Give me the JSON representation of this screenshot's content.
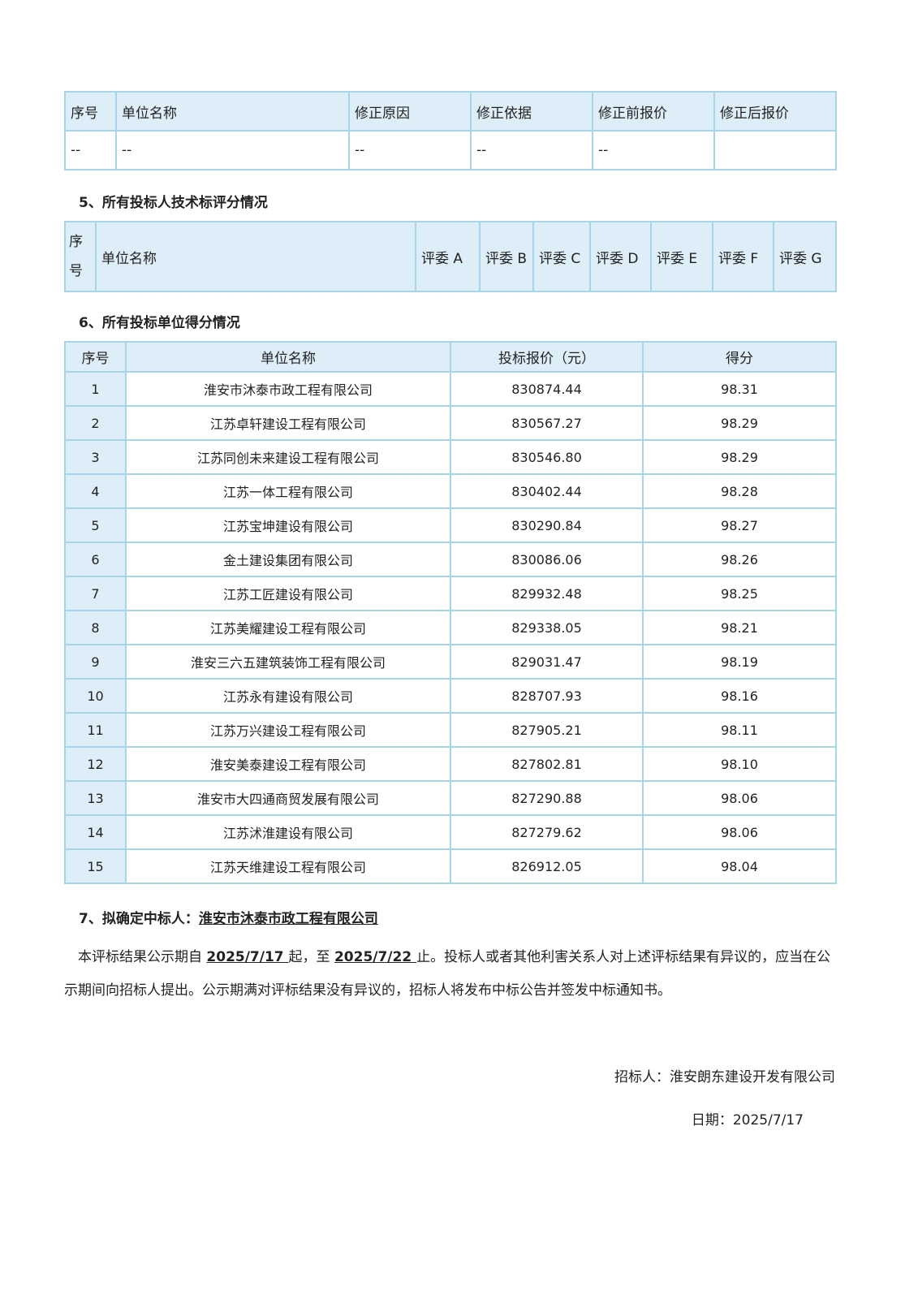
{
  "correction_table": {
    "headers": [
      "序号",
      "单位名称",
      "修正原因",
      "修正依据",
      "修正前报价",
      "修正后报价"
    ],
    "row": [
      "--",
      "--",
      "--",
      "--",
      "--",
      ""
    ]
  },
  "section5": {
    "heading": "5、所有投标人技术标评分情况",
    "headers": [
      "序号",
      "单位名称",
      "评委 A",
      "评委 B",
      "评委 C",
      "评委 D",
      "评委 E",
      "评委 F",
      "评委 G"
    ]
  },
  "section6": {
    "heading": "6、所有投标单位得分情况",
    "headers": [
      "序号",
      "单位名称",
      "投标报价（元）",
      "得分"
    ],
    "rows": [
      [
        "1",
        "淮安市沐泰市政工程有限公司",
        "830874.44",
        "98.31"
      ],
      [
        "2",
        "江苏卓轩建设工程有限公司",
        "830567.27",
        "98.29"
      ],
      [
        "3",
        "江苏同创未来建设工程有限公司",
        "830546.80",
        "98.29"
      ],
      [
        "4",
        "江苏一体工程有限公司",
        "830402.44",
        "98.28"
      ],
      [
        "5",
        "江苏宝坤建设有限公司",
        "830290.84",
        "98.27"
      ],
      [
        "6",
        "金土建设集团有限公司",
        "830086.06",
        "98.26"
      ],
      [
        "7",
        "江苏工匠建设有限公司",
        "829932.48",
        "98.25"
      ],
      [
        "8",
        "江苏美耀建设工程有限公司",
        "829338.05",
        "98.21"
      ],
      [
        "9",
        "淮安三六五建筑装饰工程有限公司",
        "829031.47",
        "98.19"
      ],
      [
        "10",
        "江苏永有建设有限公司",
        "828707.93",
        "98.16"
      ],
      [
        "11",
        "江苏万兴建设工程有限公司",
        "827905.21",
        "98.11"
      ],
      [
        "12",
        "淮安美泰建设工程有限公司",
        "827802.81",
        "98.10"
      ],
      [
        "13",
        "淮安市大四通商贸发展有限公司",
        "827290.88",
        "98.06"
      ],
      [
        "14",
        "江苏沭淮建设有限公司",
        "827279.62",
        "98.06"
      ],
      [
        "15",
        "江苏天维建设工程有限公司",
        "826912.05",
        "98.04"
      ]
    ]
  },
  "section7": {
    "heading": "7、拟确定中标人：",
    "winner": "淮安市沐泰市政工程有限公司"
  },
  "notice": {
    "p1": "本评标结果公示期自 ",
    "start": "2025/7/17 ",
    "p2": "起，至 ",
    "end": "2025/7/22 ",
    "p3": "止。投标人或者其他利害关系人对上述评标结果有异议的，应当在公示期间向招标人提出。公示期满对评标结果没有异议的，招标人将发布中标公告并签发中标通知书。"
  },
  "signature": {
    "tenderer": "招标人：淮安朗东建设开发有限公司",
    "date": "日期：2025/7/17"
  }
}
